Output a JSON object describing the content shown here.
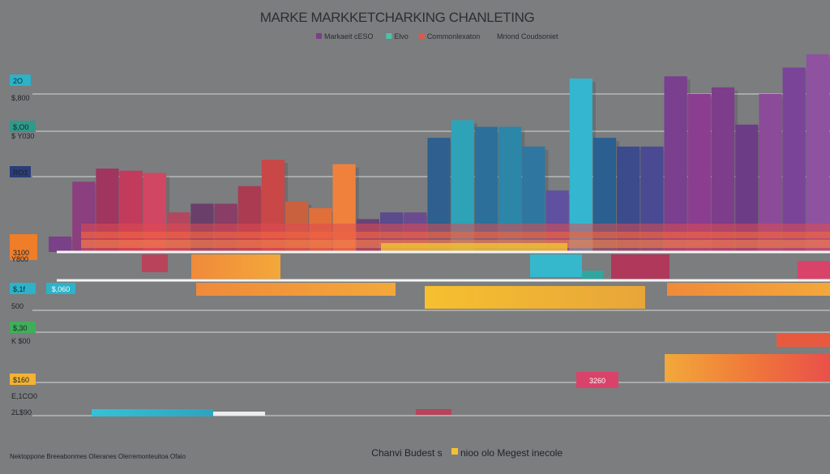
{
  "chart_data": {
    "type": "bar",
    "title": "MARKE MARKKETCHARKING CHANLETING",
    "legend": [
      {
        "label": "Markaeit cESO",
        "color": "#7b3f8a"
      },
      {
        "label": "Elvo",
        "color": "#4cc2a8"
      },
      {
        "label": "Commonlexaton",
        "color": "#e0574a"
      },
      {
        "label": "Mriond Coudsoniet",
        "color": "#7b7d7f"
      }
    ],
    "y_labels": [
      {
        "text": "2O",
        "color": "#2bb3c9"
      },
      {
        "text": "$,800",
        "color": ""
      },
      {
        "text": "$,O0",
        "color": "#2f9a8a"
      },
      {
        "text": "$ Y030",
        "color": ""
      },
      {
        "text": "RO1",
        "color": "#2a3d7a"
      },
      {
        "text": "3100",
        "color": "#ef7d2a"
      },
      {
        "text": "Y800",
        "color": ""
      },
      {
        "text": "$,1f",
        "color": "#2bb3c9"
      },
      {
        "text": "500",
        "color": ""
      },
      {
        "text": "$,30",
        "color": "#3fae5a"
      },
      {
        "text": "K $00",
        "color": ""
      },
      {
        "text": "$160",
        "color": "#f2b233"
      },
      {
        "text": "E,1CO0",
        "color": ""
      },
      {
        "text": "2L$90",
        "color": ""
      }
    ],
    "inline_labels": [
      {
        "text": "$,060",
        "color": "#2bb3c9"
      },
      {
        "text": "3260",
        "color": "#d9436a"
      }
    ],
    "top_bars": [
      {
        "value": 7,
        "color": "#7a4088"
      },
      {
        "value": 32,
        "color": "#8b3f7e"
      },
      {
        "value": 38,
        "color": "#a0365f"
      },
      {
        "value": 37,
        "color": "#c23a5c"
      },
      {
        "value": 36,
        "color": "#d14663"
      },
      {
        "value": 18,
        "color": "#b2475f"
      },
      {
        "value": 22,
        "color": "#6a3f6a"
      },
      {
        "value": 22,
        "color": "#8a3d66"
      },
      {
        "value": 30,
        "color": "#ab3b51"
      },
      {
        "value": 42,
        "color": "#c94747"
      },
      {
        "value": 23,
        "color": "#c9613f"
      },
      {
        "value": 20,
        "color": "#e06f3a"
      },
      {
        "value": 40,
        "color": "#f0813c"
      },
      {
        "value": 15,
        "color": "#6a4175"
      },
      {
        "value": 18,
        "color": "#5b4a8c"
      },
      {
        "value": 18,
        "color": "#6b4b8f"
      },
      {
        "value": 52,
        "color": "#2e5f8e"
      },
      {
        "value": 60,
        "color": "#2ea3b8"
      },
      {
        "value": 57,
        "color": "#2c6f9a"
      },
      {
        "value": 57,
        "color": "#2b86a8"
      },
      {
        "value": 48,
        "color": "#2f77a0"
      },
      {
        "value": 28,
        "color": "#6050a0"
      },
      {
        "value": 79,
        "color": "#34b6d0"
      },
      {
        "value": 52,
        "color": "#2b5f8f"
      },
      {
        "value": 48,
        "color": "#3b4b8c"
      },
      {
        "value": 48,
        "color": "#4a4a93"
      },
      {
        "value": 80,
        "color": "#7a3f8f"
      },
      {
        "value": 72,
        "color": "#8b3e8f"
      },
      {
        "value": 75,
        "color": "#7d3d8a"
      },
      {
        "value": 58,
        "color": "#6c3d86"
      },
      {
        "value": 72,
        "color": "#8b4b98"
      },
      {
        "value": 84,
        "color": "#7a4598"
      },
      {
        "value": 90,
        "color": "#8e52a1"
      }
    ],
    "bottom_bars": [
      {
        "value": 14,
        "color": "#f0813c"
      },
      {
        "value": 13,
        "color": "#f3a23a"
      },
      {
        "value": 15,
        "color": "#f2c233"
      },
      {
        "value": 11,
        "color": "#d9436a"
      },
      {
        "value": 12,
        "color": "#2bb3c9"
      },
      {
        "value": 18,
        "color": "#f09a3a"
      }
    ],
    "xlabel": "Chanvi Budest s",
    "xlabel_secondary": "nioo olo Megest inecole",
    "footnote": "Nektoppone Breeabonmes Olieranes Olerremonteuitoa Ofaio",
    "ylim": [
      0,
      100
    ]
  }
}
